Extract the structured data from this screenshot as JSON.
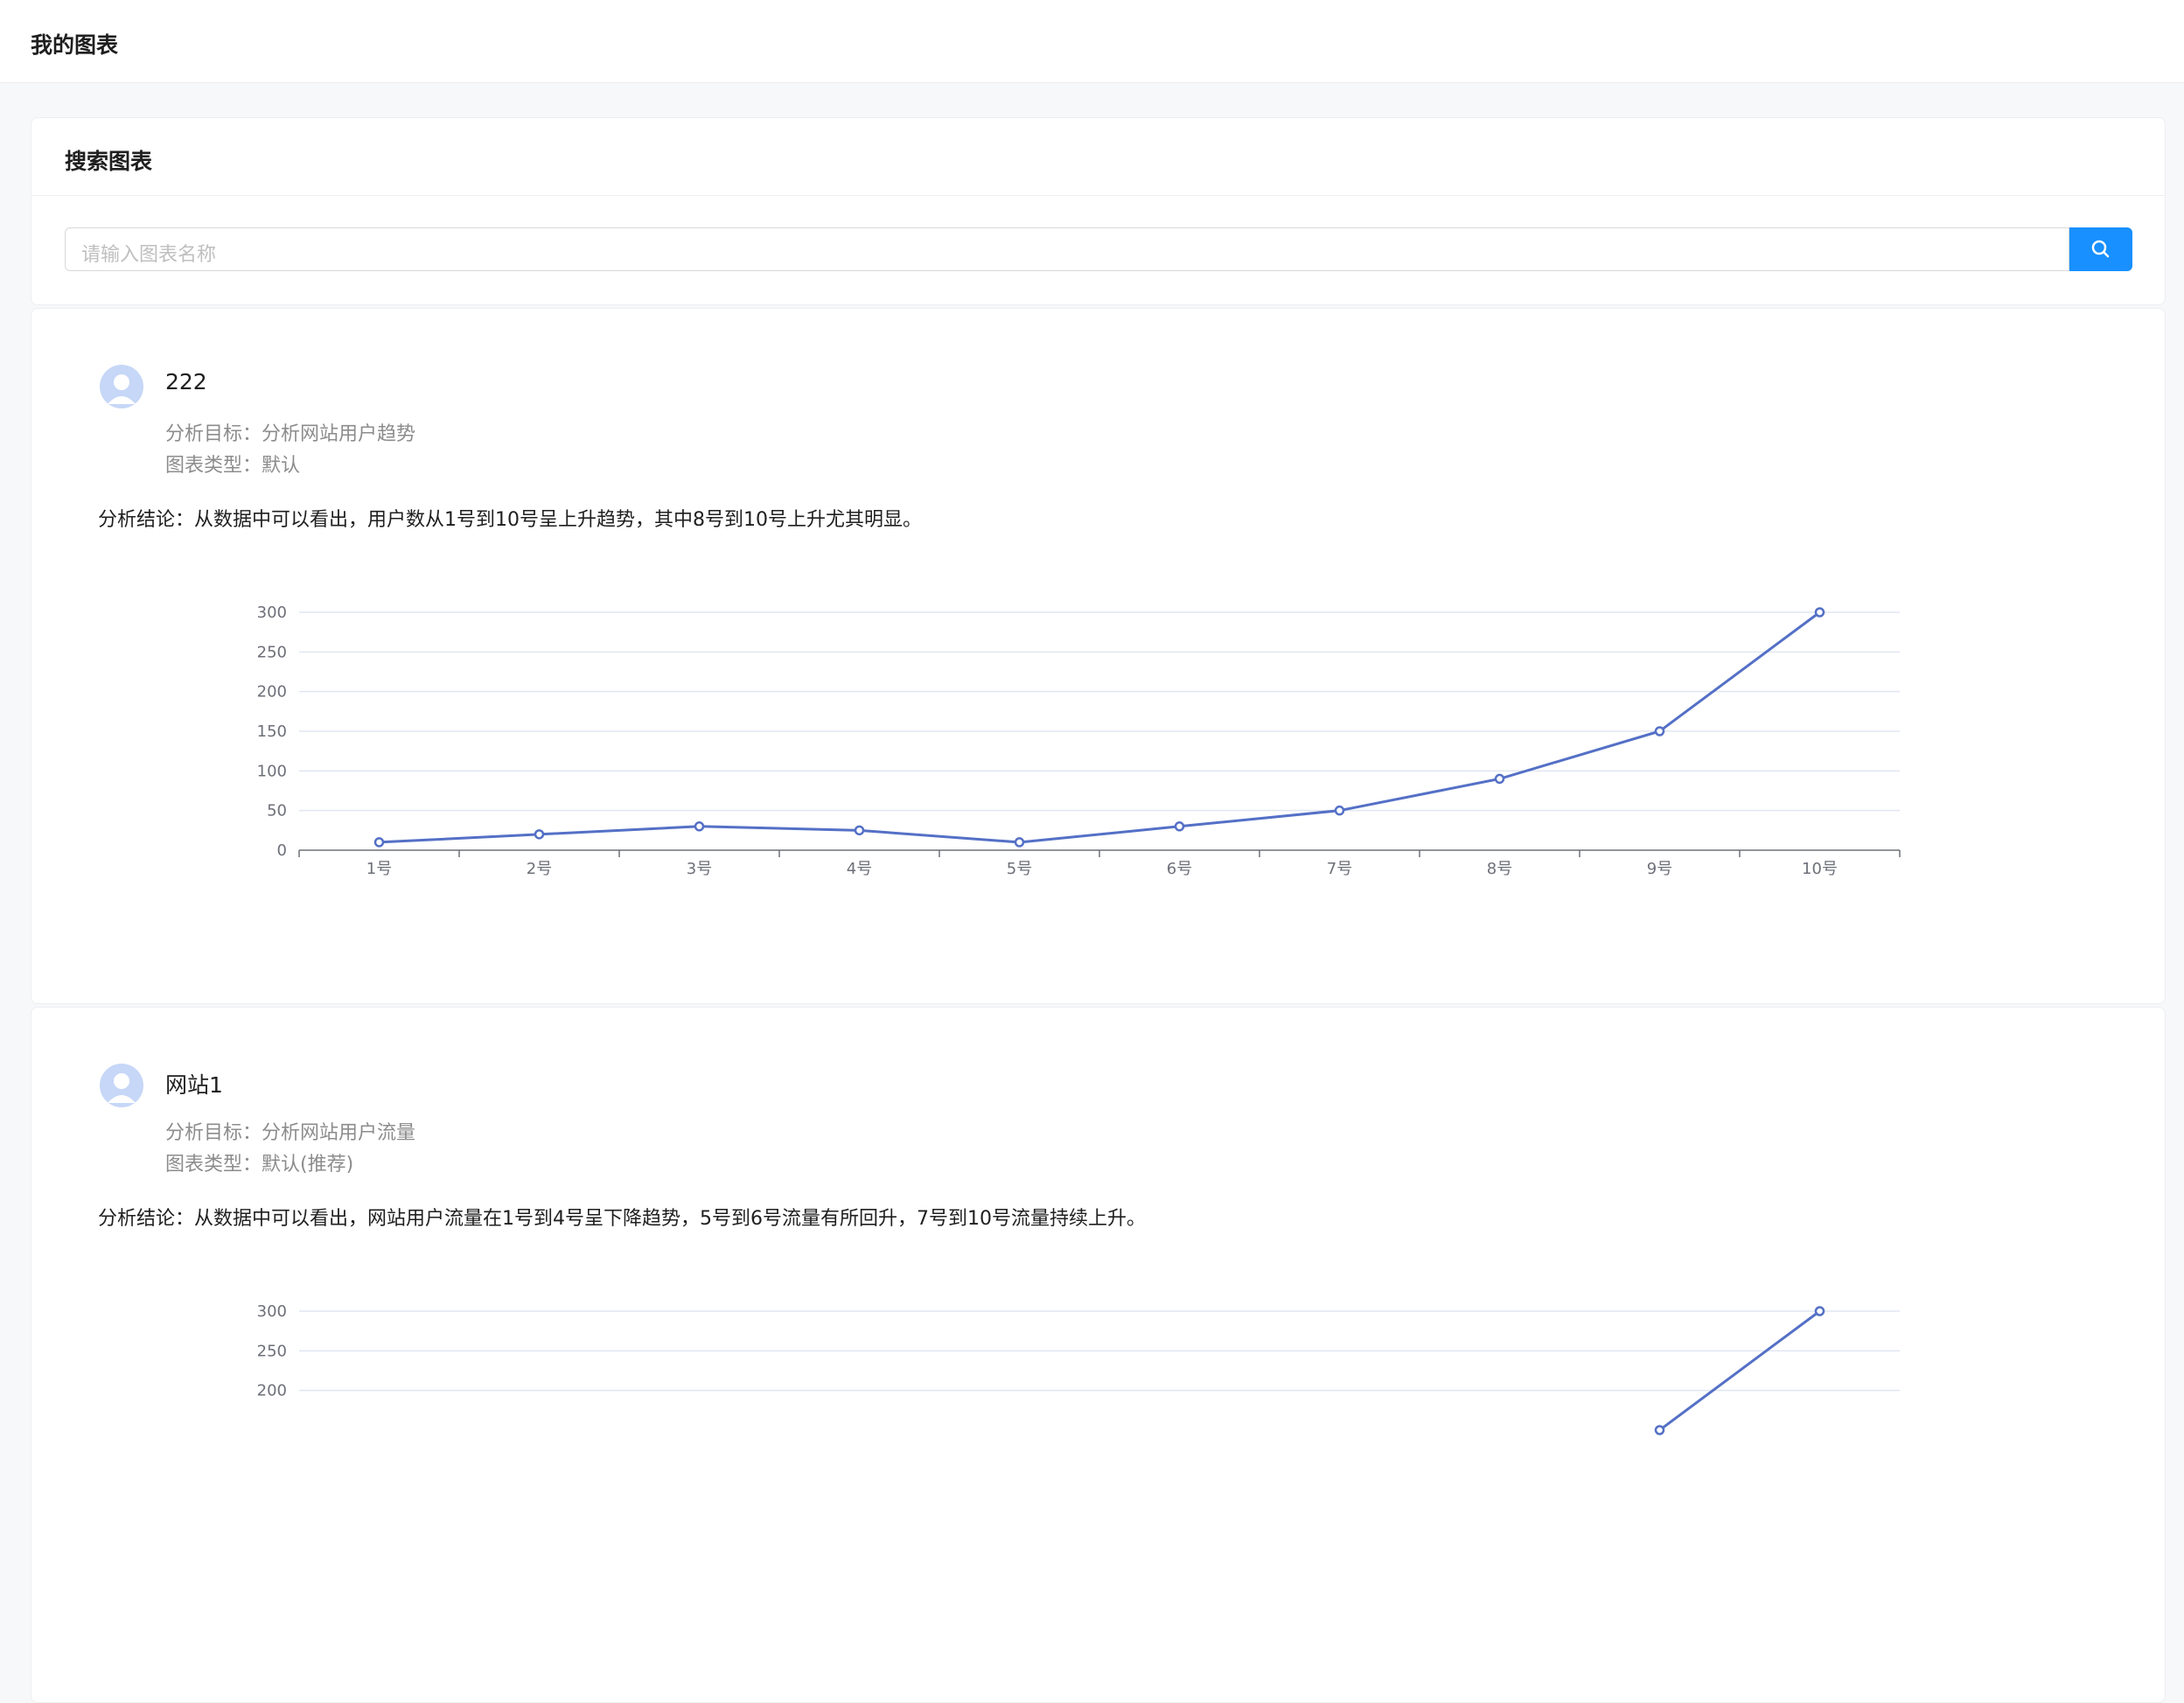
{
  "header": {
    "title": "我的图表"
  },
  "search": {
    "title": "搜索图表",
    "placeholder": "请输入图表名称"
  },
  "cards": [
    {
      "name": "222",
      "goal": "分析目标：分析网站用户趋势",
      "chart_type": "图表类型：默认",
      "conclusion": "分析结论：从数据中可以看出，用户数从1号到10号呈上升趋势，其中8号到10号上升尤其明显。",
      "chart_data": {
        "type": "line",
        "color": "#5470c6",
        "grid": true,
        "categories": [
          "1号",
          "2号",
          "3号",
          "4号",
          "5号",
          "6号",
          "7号",
          "8号",
          "9号",
          "10号"
        ],
        "values": [
          10,
          20,
          30,
          25,
          10,
          30,
          50,
          90,
          150,
          300
        ],
        "ylim": [
          0,
          300
        ],
        "yticks": [
          0,
          50,
          100,
          150,
          200,
          250,
          300
        ]
      }
    },
    {
      "name": "网站1",
      "goal": "分析目标：分析网站用户流量",
      "chart_type": "图表类型：默认(推荐)",
      "conclusion": "分析结论：从数据中可以看出，网站用户流量在1号到4号呈下降趋势，5号到6号流量有所回升，7号到10号流量持续上升。",
      "chart_data": {
        "type": "line",
        "color": "#5470c6",
        "grid": true,
        "categories": [
          null,
          null,
          null,
          null,
          null,
          null,
          null,
          null,
          null,
          null
        ],
        "values": [
          null,
          null,
          null,
          null,
          null,
          null,
          null,
          null,
          150,
          300
        ],
        "ylim": [
          0,
          300
        ],
        "yticks": [
          200,
          250,
          300
        ]
      }
    }
  ]
}
